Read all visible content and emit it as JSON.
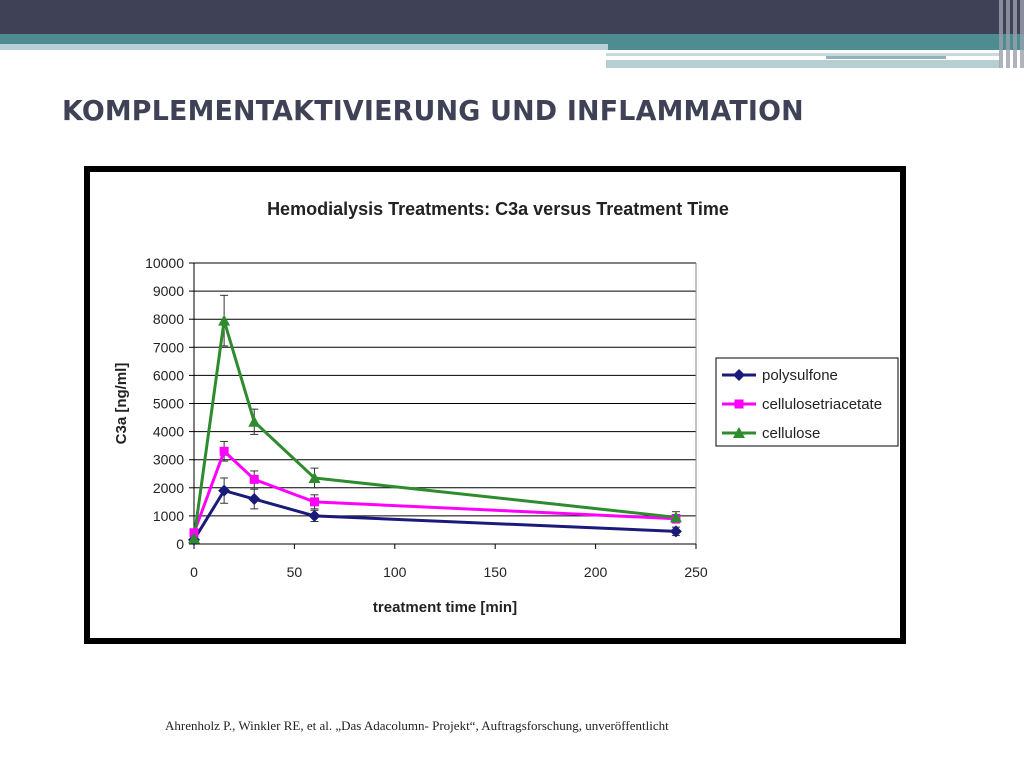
{
  "slide": {
    "title": "KOMPLEMENTAKTIVIERUNG UND INFLAMMATION",
    "citation": "Ahrenholz P., Winkler RE, et al. „Das Adacolumn- Projekt“, Auftragsforschung, unveröffentlicht"
  },
  "colors": {
    "top_bar": "#3f4256",
    "teal": "#4d8d92",
    "title_text": "#3f4256"
  },
  "chart_data": {
    "type": "line",
    "title": "Hemodialysis Treatments: C3a versus Treatment Time",
    "xlabel": "treatment time [min]",
    "ylabel": "C3a [ng/ml]",
    "xlim": [
      0,
      250
    ],
    "ylim": [
      0,
      10000
    ],
    "xticks": [
      0,
      50,
      100,
      150,
      200,
      250
    ],
    "yticks": [
      0,
      1000,
      2000,
      3000,
      4000,
      5000,
      6000,
      7000,
      8000,
      9000,
      10000
    ],
    "grid": "horizontal",
    "legend_position": "right",
    "x": [
      0,
      15,
      30,
      60,
      240
    ],
    "series": [
      {
        "name": "polysulfone",
        "color": "#1a1a7a",
        "marker": "diamond",
        "values": [
          150,
          1900,
          1600,
          1000,
          450
        ],
        "error": [
          0,
          450,
          350,
          200,
          150
        ]
      },
      {
        "name": "cellulosetriacetate",
        "color": "#ff00ff",
        "marker": "square",
        "values": [
          400,
          3300,
          2300,
          1500,
          900
        ],
        "error": [
          0,
          350,
          300,
          250,
          150
        ]
      },
      {
        "name": "cellulose",
        "color": "#2e8b2e",
        "marker": "triangle",
        "values": [
          200,
          7950,
          4350,
          2350,
          950
        ],
        "error": [
          0,
          900,
          450,
          350,
          200
        ]
      }
    ]
  }
}
